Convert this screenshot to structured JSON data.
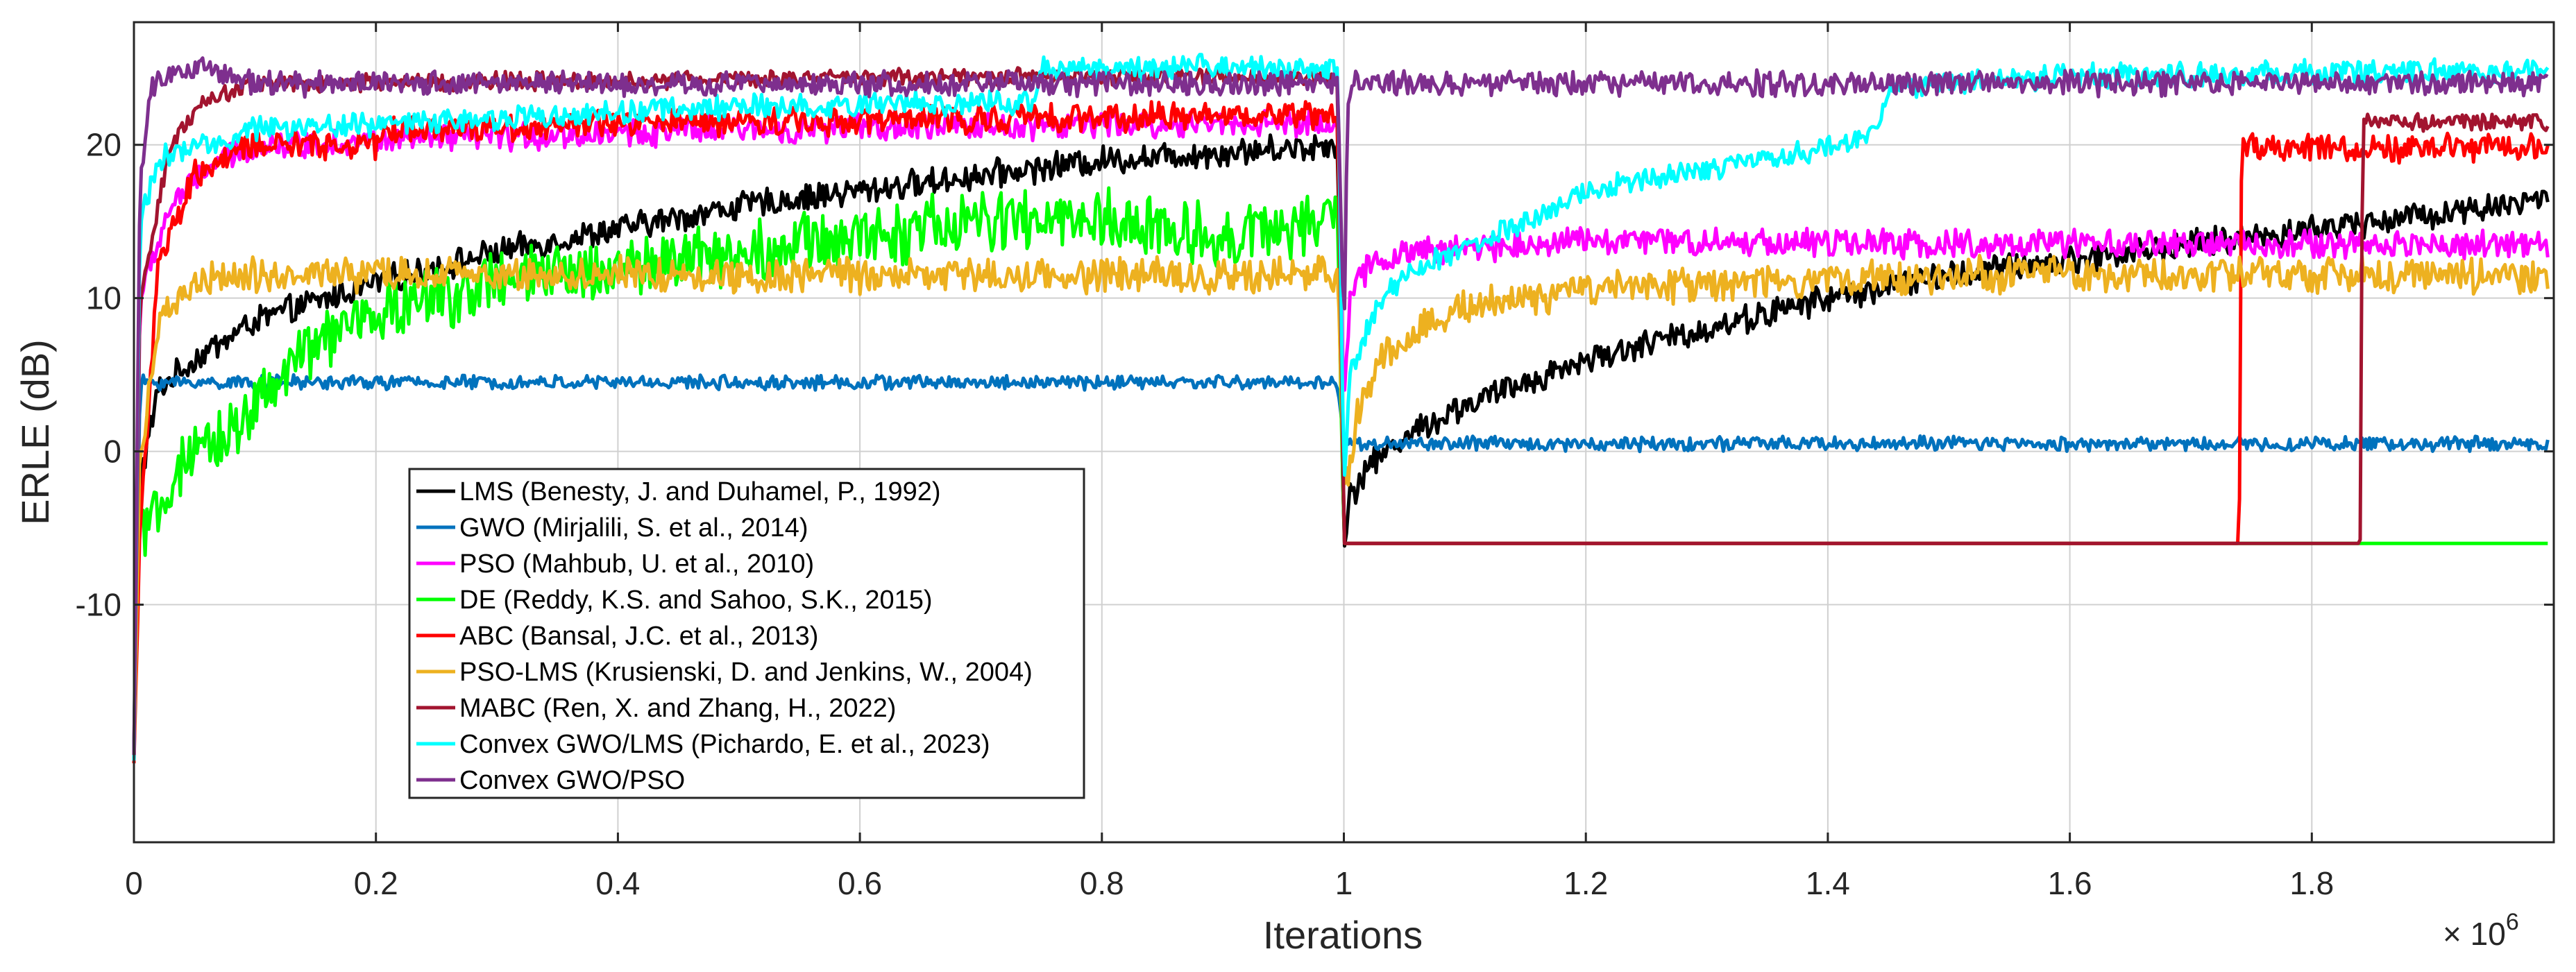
{
  "chart_data": {
    "type": "line",
    "title": "",
    "xlabel": "Iterations",
    "ylabel": "ERLE (dB)",
    "x_multiplier": "× 10",
    "x_multiplier_exp": "6",
    "xlim": [
      0,
      2.0
    ],
    "ylim": [
      -25.5,
      28
    ],
    "xticks": [
      0,
      0.2,
      0.4,
      0.6,
      0.8,
      1,
      1.2,
      1.4,
      1.6,
      1.8
    ],
    "xtick_labels": [
      "0",
      "0.2",
      "0.4",
      "0.6",
      "0.8",
      "1",
      "1.2",
      "1.4",
      "1.6",
      "1.8"
    ],
    "yticks": [
      20,
      10,
      0,
      -10
    ],
    "ytick_labels": [
      "20",
      "10",
      "0",
      "-10"
    ],
    "grid": true,
    "legend_position": "lower-left",
    "series": [
      {
        "name": "LMS (Benesty, J. and Duhamel, P., 1992)",
        "color": "#000000",
        "noise": 0.8,
        "points": [
          [
            0,
            -20
          ],
          [
            0.005,
            -2
          ],
          [
            0.02,
            4
          ],
          [
            0.05,
            6
          ],
          [
            0.1,
            8.5
          ],
          [
            0.2,
            11
          ],
          [
            0.3,
            13
          ],
          [
            0.4,
            14.5
          ],
          [
            0.5,
            16
          ],
          [
            0.6,
            17
          ],
          [
            0.7,
            18
          ],
          [
            0.8,
            19
          ],
          [
            0.9,
            19.5
          ],
          [
            0.995,
            20
          ],
          [
            1.0,
            -6
          ],
          [
            1.005,
            -3
          ],
          [
            1.02,
            -1
          ],
          [
            1.05,
            1
          ],
          [
            1.1,
            3
          ],
          [
            1.2,
            6
          ],
          [
            1.3,
            8
          ],
          [
            1.4,
            10
          ],
          [
            1.5,
            11.5
          ],
          [
            1.6,
            12.5
          ],
          [
            1.7,
            13.5
          ],
          [
            1.8,
            14.5
          ],
          [
            1.9,
            15.5
          ],
          [
            1.995,
            16.5
          ]
        ]
      },
      {
        "name": "GWO (Mirjalili, S. et al., 2014)",
        "color": "#0072BD",
        "noise": 0.4,
        "points": [
          [
            0,
            -20
          ],
          [
            0.005,
            4.5
          ],
          [
            0.5,
            4.5
          ],
          [
            0.995,
            4.5
          ],
          [
            1.0,
            0.5
          ],
          [
            1.995,
            0.5
          ]
        ]
      },
      {
        "name": "PSO (Mahbub, U. et al., 2010)",
        "color": "#FF00FF",
        "noise": 0.8,
        "points": [
          [
            0,
            -20
          ],
          [
            0.005,
            10
          ],
          [
            0.03,
            16
          ],
          [
            0.06,
            18.5
          ],
          [
            0.1,
            20
          ],
          [
            0.5,
            21
          ],
          [
            0.995,
            21.5
          ],
          [
            1.0,
            3
          ],
          [
            1.005,
            10
          ],
          [
            1.02,
            12
          ],
          [
            1.05,
            13
          ],
          [
            1.2,
            13.8
          ],
          [
            1.5,
            13.5
          ],
          [
            1.8,
            13.5
          ],
          [
            1.995,
            13.5
          ]
        ]
      },
      {
        "name": "DE (Reddy, K.S. and Sahoo, S.K., 2015)",
        "color": "#00FF00",
        "noise": 1.8,
        "points": [
          [
            0,
            -20
          ],
          [
            0.005,
            -3
          ],
          [
            0.01,
            -6
          ],
          [
            0.03,
            -2
          ],
          [
            0.06,
            0
          ],
          [
            0.1,
            3
          ],
          [
            0.15,
            7
          ],
          [
            0.2,
            9
          ],
          [
            0.3,
            11
          ],
          [
            0.4,
            12
          ],
          [
            0.5,
            13
          ],
          [
            0.6,
            14
          ],
          [
            0.7,
            15
          ],
          [
            0.8,
            15
          ],
          [
            0.9,
            14
          ],
          [
            0.995,
            15
          ],
          [
            1.0,
            -6
          ],
          [
            1.995,
            -6
          ]
        ]
      },
      {
        "name": "ABC (Bansal, J.C. et al., 2013)",
        "color": "#FF0000",
        "noise": 0.8,
        "points": [
          [
            0,
            -20
          ],
          [
            0.005,
            -5
          ],
          [
            0.02,
            12
          ],
          [
            0.05,
            18
          ],
          [
            0.1,
            20
          ],
          [
            0.2,
            20
          ],
          [
            0.21,
            21
          ],
          [
            0.5,
            21.5
          ],
          [
            0.995,
            22
          ],
          [
            1.0,
            -6
          ],
          [
            1.74,
            -6
          ],
          [
            1.742,
            19.8
          ],
          [
            1.995,
            19.8
          ]
        ]
      },
      {
        "name": "PSO-LMS (Krusienski, D. and Jenkins, W., 2004)",
        "color": "#EDB120",
        "noise": 1.0,
        "points": [
          [
            0,
            -20
          ],
          [
            0.005,
            0
          ],
          [
            0.02,
            8
          ],
          [
            0.05,
            11
          ],
          [
            0.1,
            11.5
          ],
          [
            0.3,
            11.5
          ],
          [
            0.6,
            11.5
          ],
          [
            0.995,
            11.5
          ],
          [
            1.0,
            -3
          ],
          [
            1.01,
            2
          ],
          [
            1.03,
            6
          ],
          [
            1.06,
            8
          ],
          [
            1.1,
            9.5
          ],
          [
            1.2,
            10.5
          ],
          [
            1.5,
            11.5
          ],
          [
            1.8,
            11.5
          ],
          [
            1.995,
            11.5
          ]
        ]
      },
      {
        "name": "MABC (Ren, X. and Zhang, H., 2022)",
        "color": "#A2142F",
        "noise": 0.5,
        "points": [
          [
            0,
            -20
          ],
          [
            0.005,
            10
          ],
          [
            0.03,
            20
          ],
          [
            0.06,
            23
          ],
          [
            0.1,
            24
          ],
          [
            0.5,
            24.3
          ],
          [
            0.995,
            24.5
          ],
          [
            1.0,
            -6
          ],
          [
            1.84,
            -6
          ],
          [
            1.842,
            21.5
          ],
          [
            1.995,
            21.5
          ]
        ]
      },
      {
        "name": "Convex GWO/LMS (Pichardo, E. et al., 2023)",
        "color": "#00FFFF",
        "noise": 0.7,
        "points": [
          [
            0,
            -20
          ],
          [
            0.005,
            15
          ],
          [
            0.02,
            19
          ],
          [
            0.1,
            21
          ],
          [
            0.5,
            22.5
          ],
          [
            0.745,
            22.8
          ],
          [
            0.75,
            25
          ],
          [
            0.995,
            25
          ],
          [
            1.0,
            -2
          ],
          [
            1.005,
            5
          ],
          [
            1.03,
            10
          ],
          [
            1.06,
            12
          ],
          [
            1.1,
            13
          ],
          [
            1.12,
            14
          ],
          [
            1.15,
            15
          ],
          [
            1.18,
            16
          ],
          [
            1.2,
            17
          ],
          [
            1.3,
            18.5
          ],
          [
            1.35,
            19
          ],
          [
            1.4,
            20
          ],
          [
            1.44,
            20.5
          ],
          [
            1.45,
            23.5
          ],
          [
            1.5,
            24
          ],
          [
            1.6,
            24.5
          ],
          [
            1.8,
            24.7
          ],
          [
            1.995,
            24.8
          ]
        ]
      },
      {
        "name": "Convex GWO/PSO",
        "color": "#7E2F8E",
        "noise": 0.7,
        "points": [
          [
            0,
            -20
          ],
          [
            0.005,
            18
          ],
          [
            0.015,
            24
          ],
          [
            0.05,
            25
          ],
          [
            0.1,
            24
          ],
          [
            0.5,
            24
          ],
          [
            0.995,
            24
          ],
          [
            1.0,
            7
          ],
          [
            1.003,
            23
          ],
          [
            1.01,
            24
          ],
          [
            1.5,
            24
          ],
          [
            1.995,
            24
          ]
        ]
      }
    ]
  }
}
